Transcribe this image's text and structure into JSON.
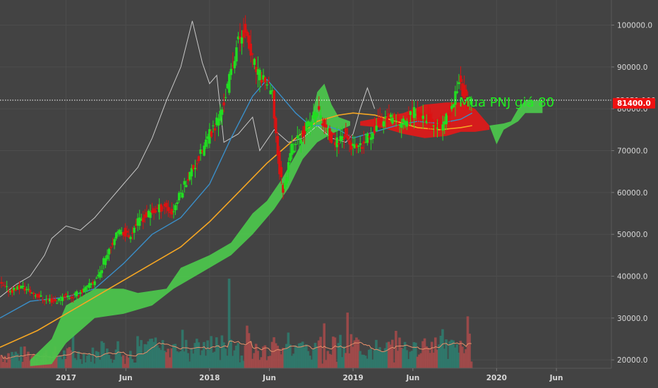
{
  "chart_data": {
    "type": "candlestick",
    "title": "",
    "y_axis": {
      "ticks": [
        20000,
        30000,
        40000,
        50000,
        60000,
        70000,
        80000,
        90000,
        100000
      ],
      "tick_labels": [
        "20000.0",
        "30000.0",
        "40000.0",
        "50000.0",
        "60000.0",
        "70000.0",
        "80000.0",
        "90000.0",
        "100000.0"
      ],
      "range": [
        18000,
        106000
      ]
    },
    "x_axis": {
      "labels": [
        "2017",
        "Jun",
        "2018",
        "Jun",
        "2019",
        "Jun",
        "2020",
        "Jun"
      ],
      "label_times": [
        2017.0,
        2017.4167,
        2018.0,
        2018.4167,
        2019.0,
        2019.4167,
        2020.0,
        2020.4167
      ],
      "range": [
        2016.54,
        2020.8
      ]
    },
    "current_price": {
      "value": 82051.1,
      "label": "82051.100"
    },
    "last_close": {
      "value": 81400,
      "label": "81400.0"
    },
    "annotation": {
      "text": "Mua PNJ giá 80"
    },
    "colors": {
      "up": "#22dd22",
      "down": "#dd1111",
      "ma_fast": "#3a8ec8",
      "ma_slow": "#f5a623",
      "compare": "#c8c8c8",
      "cloud_bull": "#4cc44c",
      "cloud_bear": "#dd1a1a",
      "volume_up": "#2e7d6e",
      "volume_down": "#a84a4a",
      "volume_ma": "#e8906a",
      "last_close_bg": "#ee1111",
      "annotation": "#22ee22"
    },
    "price_path": [
      [
        2016.55,
        38000
      ],
      [
        2016.62,
        36500
      ],
      [
        2016.7,
        37500
      ],
      [
        2016.78,
        36000
      ],
      [
        2016.86,
        34500
      ],
      [
        2016.95,
        34000
      ],
      [
        2017.0,
        35500
      ],
      [
        2017.05,
        35000
      ],
      [
        2017.1,
        36000
      ],
      [
        2017.15,
        37000
      ],
      [
        2017.2,
        38500
      ],
      [
        2017.25,
        41000
      ],
      [
        2017.3,
        46000
      ],
      [
        2017.35,
        49000
      ],
      [
        2017.4,
        51000
      ],
      [
        2017.45,
        49500
      ],
      [
        2017.5,
        52500
      ],
      [
        2017.55,
        54000
      ],
      [
        2017.6,
        55000
      ],
      [
        2017.65,
        56000
      ],
      [
        2017.7,
        57000
      ],
      [
        2017.75,
        55000
      ],
      [
        2017.8,
        59000
      ],
      [
        2017.85,
        63000
      ],
      [
        2017.9,
        66000
      ],
      [
        2017.95,
        69000
      ],
      [
        2018.0,
        73000
      ],
      [
        2018.05,
        76000
      ],
      [
        2018.1,
        80000
      ],
      [
        2018.15,
        87000
      ],
      [
        2018.2,
        95000
      ],
      [
        2018.25,
        99000
      ],
      [
        2018.3,
        93000
      ],
      [
        2018.35,
        88000
      ],
      [
        2018.4,
        87000
      ],
      [
        2018.45,
        83000
      ],
      [
        2018.5,
        65000
      ],
      [
        2018.53,
        60000
      ],
      [
        2018.57,
        70000
      ],
      [
        2018.62,
        72000
      ],
      [
        2018.67,
        75000
      ],
      [
        2018.72,
        77000
      ],
      [
        2018.76,
        80000
      ],
      [
        2018.8,
        77000
      ],
      [
        2018.85,
        73000
      ],
      [
        2018.9,
        72000
      ],
      [
        2018.95,
        74000
      ],
      [
        2019.0,
        71000
      ],
      [
        2019.05,
        70000
      ],
      [
        2019.1,
        72000
      ],
      [
        2019.15,
        75000
      ],
      [
        2019.2,
        77000
      ],
      [
        2019.25,
        78000
      ],
      [
        2019.3,
        77000
      ],
      [
        2019.35,
        76500
      ],
      [
        2019.4,
        78000
      ],
      [
        2019.45,
        80000
      ],
      [
        2019.5,
        78500
      ],
      [
        2019.55,
        77000
      ],
      [
        2019.6,
        76000
      ],
      [
        2019.65,
        76500
      ],
      [
        2019.7,
        80000
      ],
      [
        2019.75,
        87000
      ],
      [
        2019.8,
        82000
      ],
      [
        2019.83,
        81400
      ]
    ],
    "ma_fast": [
      [
        2016.54,
        30000
      ],
      [
        2016.75,
        34000
      ],
      [
        2017.0,
        35000
      ],
      [
        2017.2,
        37000
      ],
      [
        2017.4,
        43000
      ],
      [
        2017.6,
        50000
      ],
      [
        2017.8,
        54000
      ],
      [
        2018.0,
        62000
      ],
      [
        2018.15,
        73000
      ],
      [
        2018.3,
        83000
      ],
      [
        2018.4,
        87000
      ],
      [
        2018.5,
        83000
      ],
      [
        2018.6,
        79000
      ],
      [
        2018.7,
        76000
      ],
      [
        2018.8,
        76000
      ],
      [
        2018.9,
        75000
      ],
      [
        2019.0,
        73000
      ],
      [
        2019.1,
        74000
      ],
      [
        2019.2,
        75000
      ],
      [
        2019.3,
        76000
      ],
      [
        2019.45,
        77000
      ],
      [
        2019.6,
        76500
      ],
      [
        2019.75,
        77500
      ],
      [
        2019.83,
        79000
      ]
    ],
    "ma_slow": [
      [
        2016.54,
        23000
      ],
      [
        2016.8,
        27000
      ],
      [
        2017.0,
        31000
      ],
      [
        2017.2,
        35000
      ],
      [
        2017.4,
        39000
      ],
      [
        2017.6,
        43000
      ],
      [
        2017.8,
        47000
      ],
      [
        2018.0,
        53000
      ],
      [
        2018.2,
        60000
      ],
      [
        2018.4,
        67000
      ],
      [
        2018.6,
        73000
      ],
      [
        2018.75,
        77000
      ],
      [
        2018.9,
        78500
      ],
      [
        2019.0,
        79000
      ],
      [
        2019.15,
        78500
      ],
      [
        2019.3,
        77000
      ],
      [
        2019.45,
        75500
      ],
      [
        2019.6,
        75000
      ],
      [
        2019.75,
        75500
      ],
      [
        2019.83,
        76000
      ]
    ],
    "compare_line": [
      [
        2016.54,
        35000
      ],
      [
        2016.65,
        38000
      ],
      [
        2016.75,
        40000
      ],
      [
        2016.85,
        45000
      ],
      [
        2016.9,
        49000
      ],
      [
        2017.0,
        52000
      ],
      [
        2017.1,
        51000
      ],
      [
        2017.2,
        54000
      ],
      [
        2017.3,
        58000
      ],
      [
        2017.4,
        62000
      ],
      [
        2017.5,
        66000
      ],
      [
        2017.6,
        73000
      ],
      [
        2017.7,
        82000
      ],
      [
        2017.8,
        90000
      ],
      [
        2017.88,
        101000
      ],
      [
        2017.95,
        91000
      ],
      [
        2018.0,
        86000
      ],
      [
        2018.05,
        88000
      ],
      [
        2018.1,
        72000
      ],
      [
        2018.2,
        74000
      ],
      [
        2018.3,
        78000
      ],
      [
        2018.35,
        70000
      ],
      [
        2018.45,
        75000
      ],
      [
        2018.55,
        72000
      ],
      [
        2018.65,
        73000
      ],
      [
        2018.75,
        76000
      ],
      [
        2018.85,
        73000
      ],
      [
        2018.95,
        72000
      ],
      [
        2019.0,
        74000
      ],
      [
        2019.05,
        80000
      ],
      [
        2019.1,
        85000
      ],
      [
        2019.15,
        80000
      ]
    ],
    "cloud_bull": {
      "upper": [
        [
          2016.75,
          20000
        ],
        [
          2016.9,
          25000
        ],
        [
          2017.0,
          33000
        ],
        [
          2017.2,
          37000
        ],
        [
          2017.4,
          37000
        ],
        [
          2017.5,
          36000
        ],
        [
          2017.7,
          37000
        ],
        [
          2017.8,
          42000
        ],
        [
          2018.0,
          45000
        ],
        [
          2018.15,
          48000
        ],
        [
          2018.3,
          55000
        ],
        [
          2018.4,
          58000
        ],
        [
          2018.5,
          63000
        ],
        [
          2018.6,
          69000
        ],
        [
          2018.7,
          76000
        ],
        [
          2018.75,
          84000
        ],
        [
          2018.8,
          86000
        ],
        [
          2018.85,
          81000
        ],
        [
          2018.9,
          78000
        ],
        [
          2018.98,
          77000
        ]
      ],
      "lower": [
        [
          2016.75,
          18500
        ],
        [
          2016.9,
          19000
        ],
        [
          2017.0,
          24000
        ],
        [
          2017.2,
          30000
        ],
        [
          2017.4,
          31000
        ],
        [
          2017.6,
          33000
        ],
        [
          2017.75,
          37000
        ],
        [
          2017.95,
          41000
        ],
        [
          2018.15,
          45000
        ],
        [
          2018.3,
          50000
        ],
        [
          2018.45,
          56000
        ],
        [
          2018.55,
          61000
        ],
        [
          2018.65,
          68000
        ],
        [
          2018.75,
          72000
        ],
        [
          2018.85,
          74000
        ],
        [
          2018.98,
          76000
        ]
      ]
    },
    "cloud_bear": {
      "upper": [
        [
          2019.05,
          77000
        ],
        [
          2019.2,
          78000
        ],
        [
          2019.35,
          79000
        ],
        [
          2019.5,
          81000
        ],
        [
          2019.65,
          81500
        ],
        [
          2019.75,
          81500
        ],
        [
          2019.85,
          80000
        ],
        [
          2019.95,
          76000
        ]
      ],
      "lower": [
        [
          2019.05,
          76000
        ],
        [
          2019.2,
          75500
        ],
        [
          2019.35,
          74000
        ],
        [
          2019.5,
          73000
        ],
        [
          2019.65,
          73500
        ],
        [
          2019.75,
          74500
        ],
        [
          2019.85,
          74500
        ],
        [
          2019.95,
          75000
        ]
      ]
    },
    "cloud_bull_future": {
      "upper": [
        [
          2019.95,
          76000
        ],
        [
          2020.05,
          76500
        ],
        [
          2020.1,
          77000
        ],
        [
          2020.15,
          80000
        ],
        [
          2020.2,
          82000
        ],
        [
          2020.3,
          82000
        ],
        [
          2020.32,
          82000
        ]
      ],
      "lower": [
        [
          2019.95,
          76000
        ],
        [
          2020.0,
          71500
        ],
        [
          2020.05,
          75000
        ],
        [
          2020.15,
          77000
        ],
        [
          2020.2,
          79000
        ],
        [
          2020.32,
          79000
        ]
      ]
    }
  }
}
